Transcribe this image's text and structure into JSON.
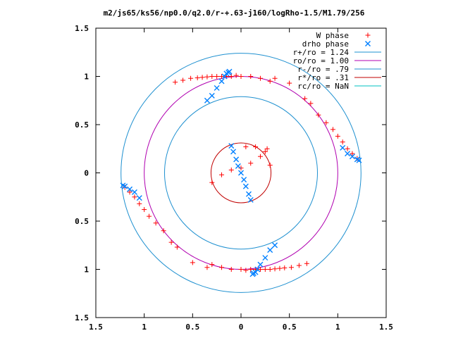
{
  "chart_data": {
    "type": "scatter",
    "title": "m2/js65/ks56/np0.0/q2.0/r-+.63-j160/logRho-1.5/M1.79/256",
    "xlim": [
      -1.5,
      1.5
    ],
    "ylim": [
      -1.5,
      1.5
    ],
    "x_tick_labels": [
      "1.5",
      "1",
      "0.5",
      "0",
      "0.5",
      "1",
      "1.5"
    ],
    "y_tick_labels": [
      "1.5",
      "1",
      "0.5",
      "0",
      "0.5",
      "1",
      "1.5"
    ],
    "x_ticks": [
      -1.5,
      -1,
      -0.5,
      0,
      0.5,
      1,
      1.5
    ],
    "y_ticks": [
      1.5,
      1,
      0.5,
      0,
      -0.5,
      -1,
      -1.5
    ],
    "grid": false,
    "legend_position": "top-right",
    "colors": {
      "w_phase": "#ff0000",
      "drho_phase": "#0080ff",
      "r_plus": "#1e90d0",
      "ro": "#b000b0",
      "r_minus": "#1e90d0",
      "r_star": "#c00000",
      "rc": "#00c0c0"
    },
    "legend": [
      {
        "label": "W phase",
        "marker": "plus",
        "color": "#ff0000"
      },
      {
        "label": "drho phase",
        "marker": "cross",
        "color": "#0080ff"
      },
      {
        "label": "r+/ro = 1.24",
        "marker": "line",
        "color": "#1e90d0"
      },
      {
        "label": "ro/ro = 1.00",
        "marker": "line",
        "color": "#b000b0"
      },
      {
        "label": "r-/ro = .79",
        "marker": "line",
        "color": "#1e90d0"
      },
      {
        "label": "r*/ro = .31",
        "marker": "line",
        "color": "#c00000"
      },
      {
        "label": "rc/ro = NaN",
        "marker": "line",
        "color": "#00c0c0"
      }
    ],
    "circles": [
      {
        "name": "r+/ro",
        "radius": 1.24
      },
      {
        "name": "ro/ro",
        "radius": 1.0
      },
      {
        "name": "r-/ro",
        "radius": 0.79
      },
      {
        "name": "r*/ro",
        "radius": 0.31
      }
    ],
    "series": [
      {
        "name": "W phase",
        "arms": [
          {
            "x": [
              -0.68,
              -0.6,
              -0.52,
              -0.45,
              -0.4,
              -0.35,
              -0.3,
              -0.25,
              -0.2,
              -0.15,
              -0.1,
              -0.05,
              0,
              0.1,
              0.2,
              0.3
            ],
            "y": [
              0.94,
              0.96,
              0.98,
              0.985,
              0.99,
              0.995,
              1.0,
              1.0,
              1.0,
              1.0,
              1.0,
              1.01,
              1.0,
              1.0,
              0.98,
              0.95
            ]
          },
          {
            "x": [
              0.35,
              0.5,
              0.66,
              0.72,
              0.8,
              0.88,
              0.95,
              1.0,
              1.05,
              1.1,
              1.15,
              1.2
            ],
            "y": [
              0.98,
              0.93,
              0.77,
              0.72,
              0.6,
              0.52,
              0.45,
              0.38,
              0.32,
              0.25,
              0.2,
              0.15
            ]
          },
          {
            "x": [
              0.68,
              0.6,
              0.52,
              0.45,
              0.4,
              0.35,
              0.3,
              0.25,
              0.2,
              0.15,
              0.1,
              0.05,
              0,
              -0.1,
              -0.2,
              -0.3
            ],
            "y": [
              -0.94,
              -0.96,
              -0.98,
              -0.985,
              -0.99,
              -0.995,
              -1.0,
              -1.0,
              -1.0,
              -1.0,
              -1.0,
              -1.01,
              -1.0,
              -1.0,
              -0.98,
              -0.95
            ]
          },
          {
            "x": [
              -0.35,
              -0.5,
              -0.66,
              -0.72,
              -0.8,
              -0.88,
              -0.95,
              -1.0,
              -1.05,
              -1.1,
              -1.15,
              -1.2
            ],
            "y": [
              -0.98,
              -0.93,
              -0.77,
              -0.72,
              -0.6,
              -0.52,
              -0.45,
              -0.38,
              -0.32,
              -0.25,
              -0.2,
              -0.15
            ]
          },
          {
            "x": [
              -0.3,
              -0.2,
              -0.1,
              0,
              0.1,
              0.2,
              0.25,
              0.27,
              0.15,
              0.05,
              0.3
            ],
            "y": [
              -0.1,
              -0.02,
              0.03,
              0.05,
              0.1,
              0.17,
              0.22,
              0.25,
              0.27,
              0.27,
              0.08
            ]
          }
        ]
      },
      {
        "name": "drho phase",
        "arms": [
          {
            "x": [
              -0.35,
              -0.3,
              -0.25,
              -0.2,
              -0.17,
              -0.15,
              -0.13,
              -0.12
            ],
            "y": [
              0.75,
              0.8,
              0.88,
              0.95,
              1.0,
              1.03,
              1.04,
              1.05
            ]
          },
          {
            "x": [
              1.05,
              1.1,
              1.15,
              1.2,
              1.22
            ],
            "y": [
              0.26,
              0.2,
              0.17,
              0.14,
              0.13
            ]
          },
          {
            "x": [
              0.35,
              0.3,
              0.25,
              0.2,
              0.17,
              0.15,
              0.13,
              0.12
            ],
            "y": [
              -0.75,
              -0.8,
              -0.88,
              -0.95,
              -1.0,
              -1.03,
              -1.04,
              -1.05
            ]
          },
          {
            "x": [
              -1.05,
              -1.1,
              -1.15,
              -1.2,
              -1.22
            ],
            "y": [
              -0.26,
              -0.2,
              -0.17,
              -0.14,
              -0.13
            ]
          },
          {
            "x": [
              -0.1,
              -0.08,
              -0.05,
              -0.03,
              0,
              0.03,
              0.05,
              0.08,
              0.1
            ],
            "y": [
              0.28,
              0.22,
              0.14,
              0.07,
              0,
              -0.07,
              -0.14,
              -0.22,
              -0.28
            ]
          }
        ]
      }
    ]
  }
}
